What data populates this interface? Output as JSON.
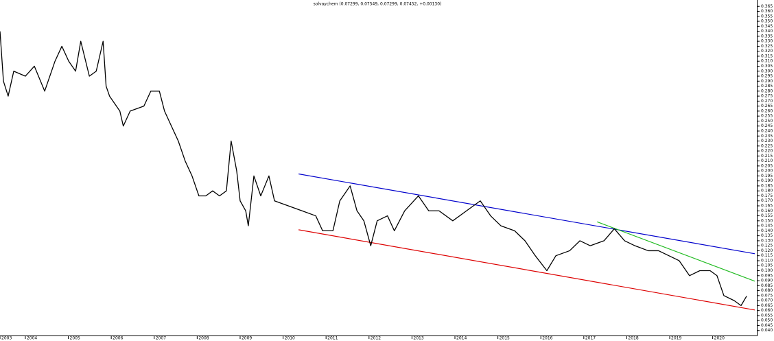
{
  "chart_data": {
    "type": "line",
    "title": "solvaychem (0.07299, 0.07549, 0.07299, 0.07452, +0.00130)",
    "color": "#000000",
    "x": [
      2003.41,
      2003.49,
      2003.6,
      2003.73,
      2004.0,
      2004.21,
      2004.45,
      2004.69,
      2004.85,
      2005.01,
      2005.17,
      2005.29,
      2005.49,
      2005.65,
      2005.81,
      2005.88,
      2005.96,
      2006.2,
      2006.28,
      2006.44,
      2006.76,
      2006.92,
      2007.12,
      2007.24,
      2007.4,
      2007.56,
      2007.72,
      2007.88,
      2008.04,
      2008.2,
      2008.36,
      2008.52,
      2008.68,
      2008.79,
      2008.92,
      2009.0,
      2009.13,
      2009.19,
      2009.32,
      2009.48,
      2009.67,
      2009.8,
      2010.12,
      2010.44,
      2010.76,
      2010.92,
      2011.16,
      2011.32,
      2011.56,
      2011.72,
      2011.88,
      2012.04,
      2012.19,
      2012.43,
      2012.59,
      2012.83,
      2013.15,
      2013.39,
      2013.63,
      2013.95,
      2014.27,
      2014.59,
      2014.83,
      2015.07,
      2015.39,
      2015.63,
      2015.87,
      2016.14,
      2016.35,
      2016.67,
      2016.91,
      2017.15,
      2017.47,
      2017.71,
      2017.95,
      2018.19,
      2018.5,
      2018.74,
      2018.98,
      2019.22,
      2019.46,
      2019.7,
      2019.94,
      2020.1,
      2020.26,
      2020.5,
      2020.66,
      2020.79
    ],
    "values": [
      0.34,
      0.29,
      0.275,
      0.3,
      0.295,
      0.305,
      0.28,
      0.31,
      0.325,
      0.31,
      0.3,
      0.33,
      0.295,
      0.3,
      0.33,
      0.285,
      0.275,
      0.26,
      0.245,
      0.26,
      0.265,
      0.28,
      0.28,
      0.26,
      0.245,
      0.23,
      0.21,
      0.195,
      0.175,
      0.175,
      0.18,
      0.175,
      0.18,
      0.23,
      0.2,
      0.17,
      0.16,
      0.145,
      0.195,
      0.175,
      0.195,
      0.17,
      0.165,
      0.16,
      0.155,
      0.14,
      0.14,
      0.17,
      0.185,
      0.16,
      0.15,
      0.125,
      0.15,
      0.155,
      0.14,
      0.16,
      0.175,
      0.16,
      0.16,
      0.15,
      0.16,
      0.17,
      0.155,
      0.145,
      0.14,
      0.13,
      0.115,
      0.1,
      0.115,
      0.12,
      0.13,
      0.125,
      0.13,
      0.142,
      0.13,
      0.125,
      0.12,
      0.12,
      0.115,
      0.11,
      0.095,
      0.1,
      0.1,
      0.095,
      0.075,
      0.07,
      0.065,
      0.0745
    ],
    "lines": [
      {
        "color": "#0000cc",
        "x": [
          2010.36,
          2020.98
        ],
        "values": [
          0.197,
          0.117
        ]
      },
      {
        "color": "#dd0000",
        "x": [
          2010.36,
          2020.98
        ],
        "values": [
          0.141,
          0.0606
        ]
      },
      {
        "color": "#22bb22",
        "x": [
          2017.31,
          2020.98
        ],
        "values": [
          0.149,
          0.0895
        ]
      }
    ],
    "xlim": [
      2003.41,
      2020.98
    ],
    "xticks": [
      {
        "value": 2003.41,
        "label": "2003"
      },
      2004,
      2005,
      2006,
      2007,
      2008,
      2009,
      2010,
      2011,
      2012,
      2013,
      2014,
      2015,
      2016,
      2017,
      2018,
      2019,
      2020
    ],
    "ylim": [
      0.035,
      0.37
    ],
    "yticks": [
      {
        "value": 0.04,
        "label": "0.040"
      },
      {
        "value": 0.045,
        "label": "0.045"
      },
      {
        "value": 0.05,
        "label": "0.050"
      },
      {
        "value": 0.055,
        "label": "0.055"
      },
      {
        "value": 0.06,
        "label": "0.060"
      },
      {
        "value": 0.065,
        "label": "0.065"
      },
      {
        "value": 0.07,
        "label": "0.070"
      },
      {
        "value": 0.075,
        "label": "0.075"
      },
      {
        "value": 0.08,
        "label": "0.080"
      },
      {
        "value": 0.085,
        "label": "0.085"
      },
      {
        "value": 0.09,
        "label": "0.090"
      },
      {
        "value": 0.095,
        "label": "0.095"
      },
      {
        "value": 0.1,
        "label": "0.100"
      },
      {
        "value": 0.105,
        "label": "0.105"
      },
      {
        "value": 0.11,
        "label": "0.110"
      },
      {
        "value": 0.115,
        "label": "0.115"
      },
      {
        "value": 0.12,
        "label": "0.120"
      },
      {
        "value": 0.125,
        "label": "0.125"
      },
      {
        "value": 0.13,
        "label": "0.130"
      },
      {
        "value": 0.135,
        "label": "0.135"
      },
      {
        "value": 0.14,
        "label": "0.140"
      },
      {
        "value": 0.145,
        "label": "0.145"
      },
      {
        "value": 0.15,
        "label": "0.150"
      },
      {
        "value": 0.155,
        "label": "0.155"
      },
      {
        "value": 0.16,
        "label": "0.160"
      },
      {
        "value": 0.165,
        "label": "0.165"
      },
      {
        "value": 0.17,
        "label": "0.170"
      },
      {
        "value": 0.175,
        "label": "0.175"
      },
      {
        "value": 0.18,
        "label": "0.180"
      },
      {
        "value": 0.185,
        "label": "0.185"
      },
      {
        "value": 0.19,
        "label": "0.190"
      },
      {
        "value": 0.195,
        "label": "0.195"
      },
      {
        "value": 0.2,
        "label": "0.200"
      },
      {
        "value": 0.205,
        "label": "0.205"
      },
      {
        "value": 0.21,
        "label": "0.210"
      },
      {
        "value": 0.215,
        "label": "0.215"
      },
      {
        "value": 0.22,
        "label": "0.220"
      },
      {
        "value": 0.225,
        "label": "0.225"
      },
      {
        "value": 0.23,
        "label": "0.230"
      },
      {
        "value": 0.235,
        "label": "0.235"
      },
      {
        "value": 0.24,
        "label": "0.240"
      },
      {
        "value": 0.245,
        "label": "0.245"
      },
      {
        "value": 0.25,
        "label": "0.250"
      },
      {
        "value": 0.255,
        "label": "0.255"
      },
      {
        "value": 0.26,
        "label": "0.260"
      },
      {
        "value": 0.265,
        "label": "0.265"
      },
      {
        "value": 0.27,
        "label": "0.270"
      },
      {
        "value": 0.275,
        "label": "0.275"
      },
      {
        "value": 0.28,
        "label": "0.280"
      },
      {
        "value": 0.285,
        "label": "0.285"
      },
      {
        "value": 0.29,
        "label": "0.290"
      },
      {
        "value": 0.295,
        "label": "0.295"
      },
      {
        "value": 0.3,
        "label": "0.300"
      },
      {
        "value": 0.305,
        "label": "0.305"
      },
      {
        "value": 0.31,
        "label": "0.310"
      },
      {
        "value": 0.315,
        "label": "0.315"
      },
      {
        "value": 0.32,
        "label": "0.320"
      },
      {
        "value": 0.325,
        "label": "0.325"
      },
      {
        "value": 0.33,
        "label": "0.330"
      },
      {
        "value": 0.335,
        "label": "0.335"
      },
      {
        "value": 0.34,
        "label": "0.340"
      },
      {
        "value": 0.345,
        "label": "0.345"
      },
      {
        "value": 0.35,
        "label": "0.350"
      },
      {
        "value": 0.355,
        "label": "0.355"
      },
      {
        "value": 0.36,
        "label": "0.360"
      },
      {
        "value": 0.365,
        "label": "0.365"
      }
    ]
  }
}
